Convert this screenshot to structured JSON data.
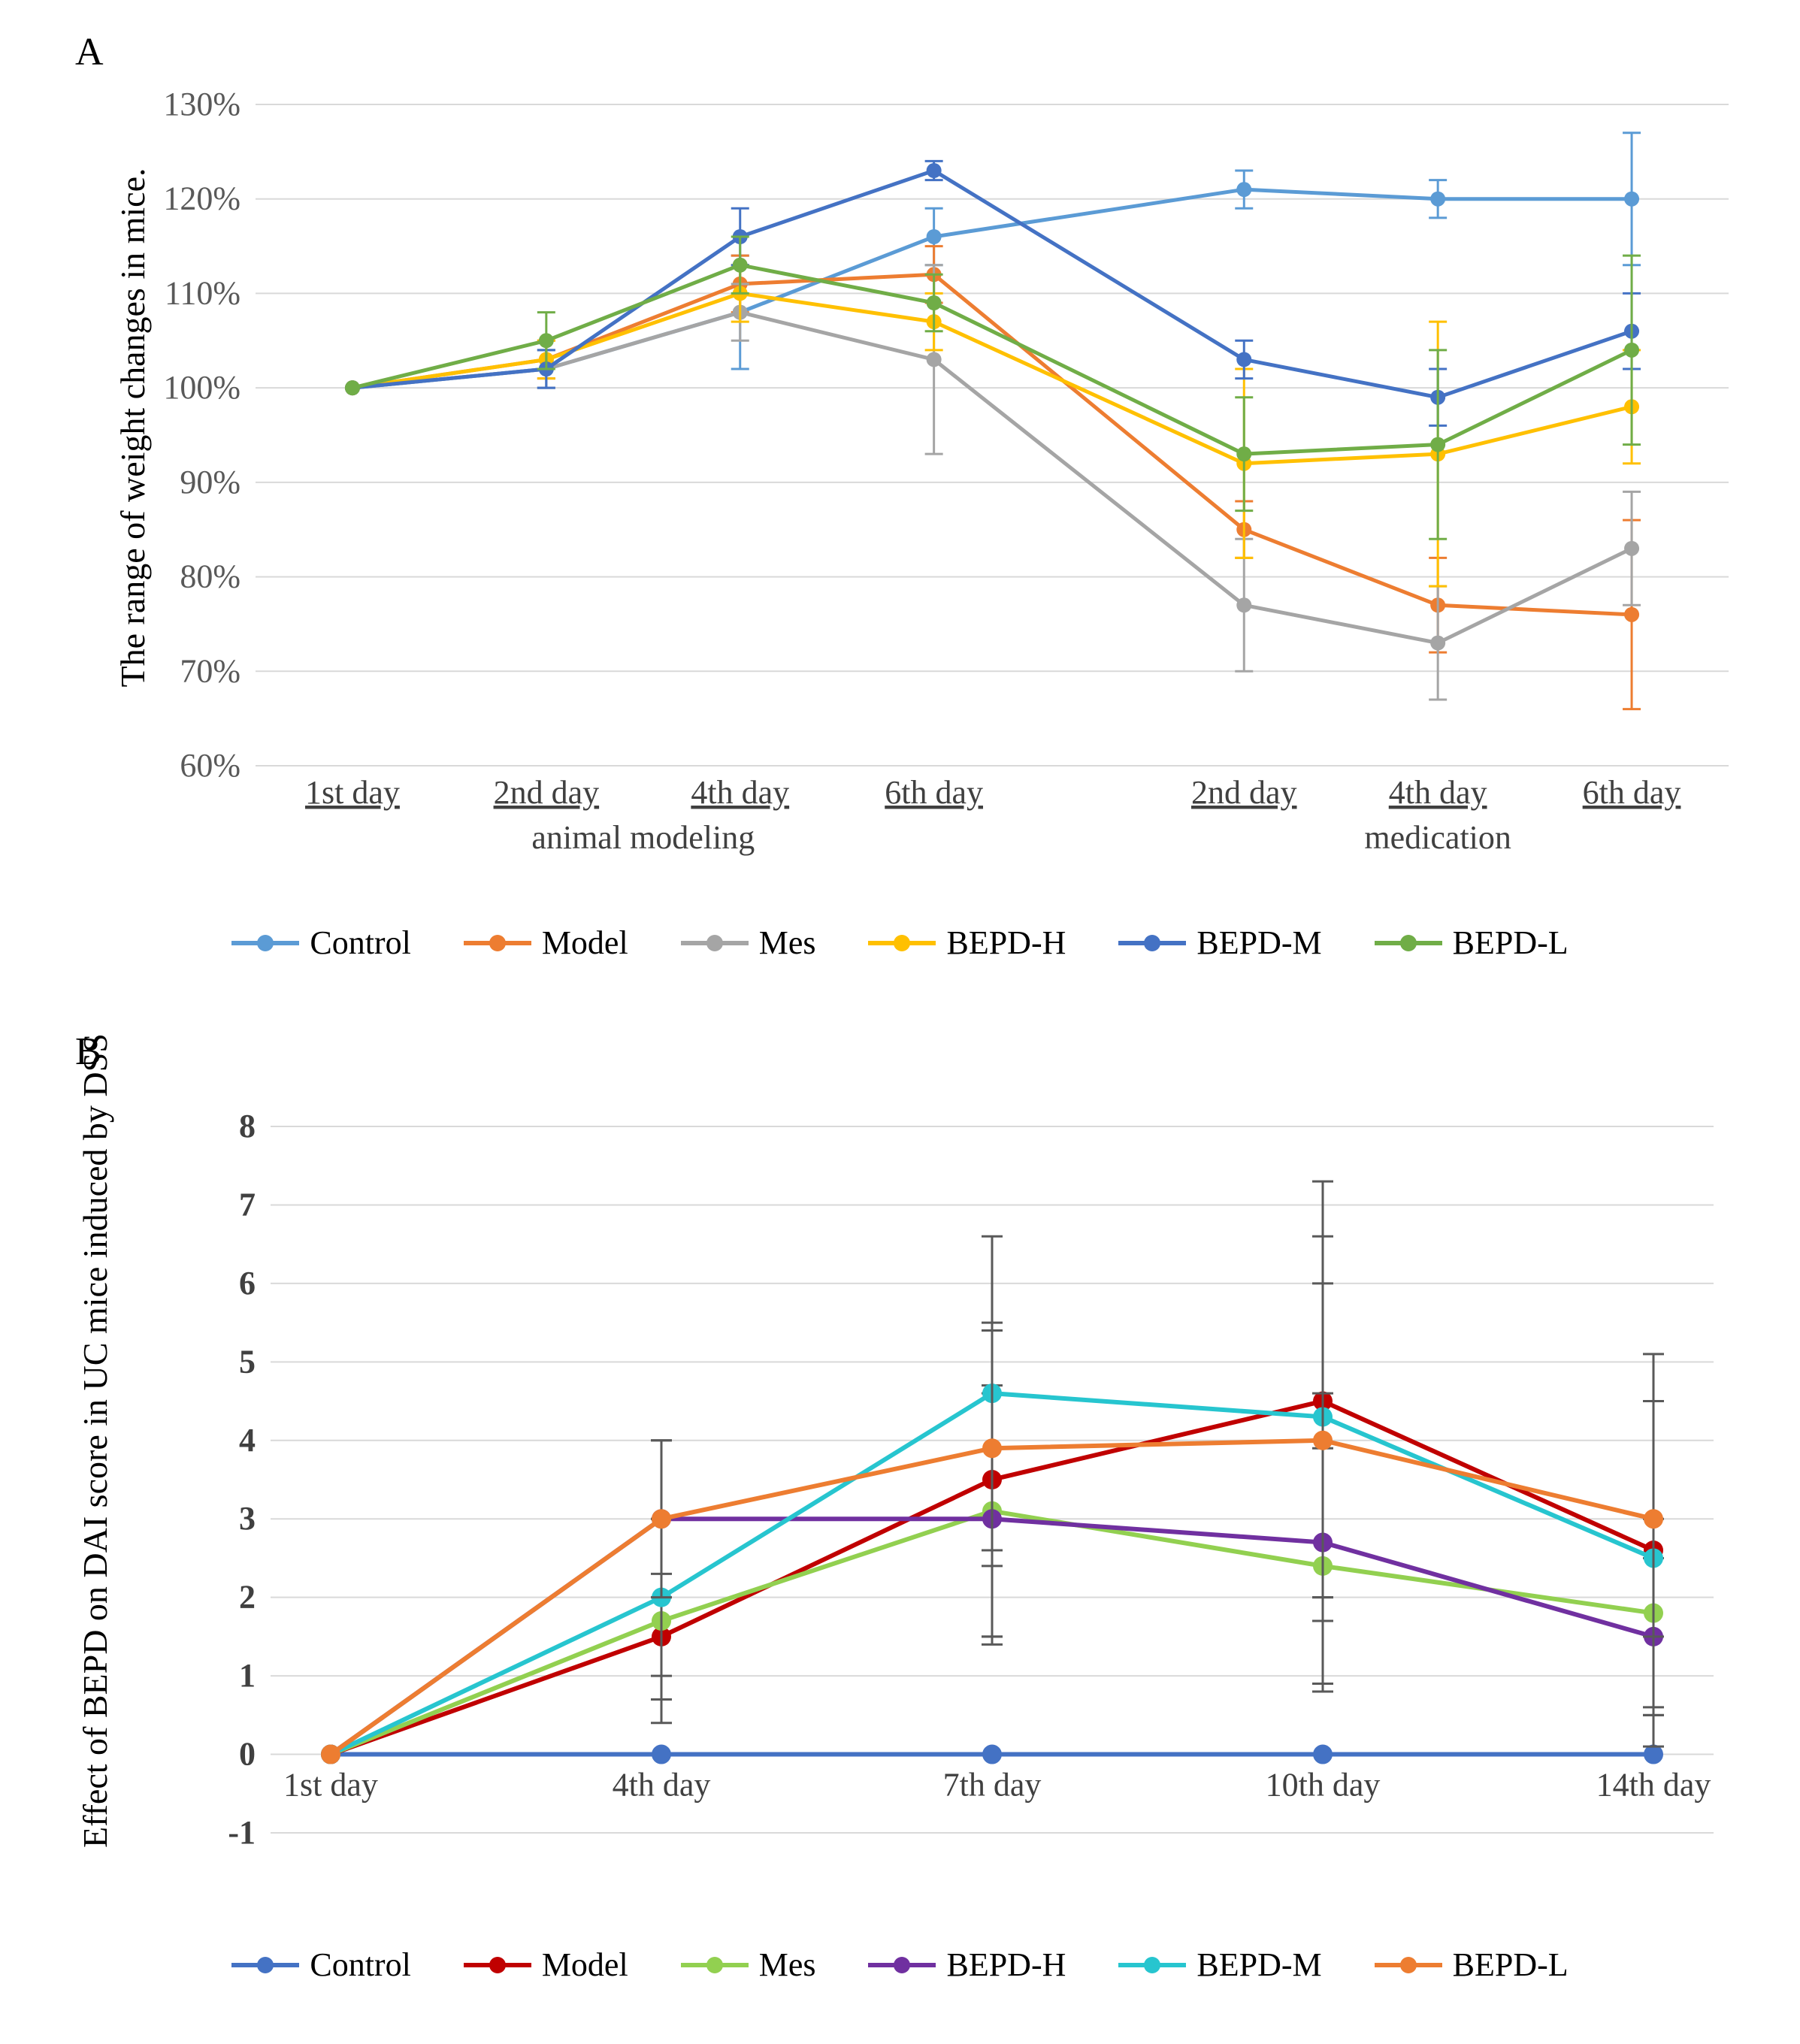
{
  "panelA": {
    "label": "A",
    "type": "line",
    "ylabel": "The range of weight changes in mice.",
    "yaxis": {
      "min": 0.6,
      "max": 1.3,
      "tick_step": 0.1,
      "tick_format": "percent",
      "label_fontsize": 44
    },
    "xaxis": {
      "categories": [
        "1st day",
        "2nd day",
        "4th day",
        "6th day",
        "2nd day",
        "4th day",
        "6th day"
      ],
      "phase_labels": [
        "animal modeling",
        "medication"
      ],
      "phase_ranges": [
        [
          0,
          3
        ],
        [
          4,
          6
        ]
      ],
      "gap_after_index": 3,
      "label_fontsize": 44
    },
    "grid_color": "#d9d9d9",
    "axis_color": "#808080",
    "background_color": "#ffffff",
    "line_width": 5,
    "marker_radius": 10,
    "series": [
      {
        "name": "Control",
        "color": "#5b9bd5",
        "y": [
          1.0,
          1.02,
          1.08,
          1.16,
          1.21,
          1.2,
          1.2
        ],
        "err": [
          0.0,
          0.02,
          0.06,
          0.03,
          0.02,
          0.02,
          0.07
        ]
      },
      {
        "name": "Model",
        "color": "#ed7d31",
        "y": [
          1.0,
          1.03,
          1.11,
          1.12,
          0.85,
          0.77,
          0.76
        ],
        "err": [
          0.0,
          0.02,
          0.03,
          0.03,
          0.03,
          0.05,
          0.1
        ]
      },
      {
        "name": "Mes",
        "color": "#a5a5a5",
        "y": [
          1.0,
          1.02,
          1.08,
          1.03,
          0.77,
          0.73,
          0.83
        ],
        "err": [
          0.0,
          0.02,
          0.03,
          0.1,
          0.07,
          0.06,
          0.06
        ]
      },
      {
        "name": "BEPD-H",
        "color": "#ffc000",
        "y": [
          1.0,
          1.03,
          1.1,
          1.07,
          0.92,
          0.93,
          0.98
        ],
        "err": [
          0.0,
          0.02,
          0.03,
          0.03,
          0.1,
          0.14,
          0.06
        ]
      },
      {
        "name": "BEPD-M",
        "color": "#4472c4",
        "y": [
          1.0,
          1.02,
          1.16,
          1.23,
          1.03,
          0.99,
          1.06
        ],
        "err": [
          0.0,
          0.02,
          0.03,
          0.01,
          0.02,
          0.03,
          0.04
        ]
      },
      {
        "name": "BEPD-L",
        "color": "#70ad47",
        "y": [
          1.0,
          1.05,
          1.13,
          1.09,
          0.93,
          0.94,
          1.04
        ],
        "err": [
          0.0,
          0.03,
          0.03,
          0.03,
          0.06,
          0.1,
          0.1
        ]
      }
    ]
  },
  "panelB": {
    "label": "B",
    "type": "line",
    "ylabel": "Effect of BEPD on DAI score in UC mice induced by DSS",
    "yaxis": {
      "min": -1,
      "max": 8,
      "tick_step": 1,
      "tick_format": "int",
      "label_fontsize": 44
    },
    "xaxis": {
      "categories": [
        "1st day",
        "4th day",
        "7th day",
        "10th day",
        "14th day"
      ],
      "label_fontsize": 44
    },
    "grid_color": "#d9d9d9",
    "axis_color": "#808080",
    "background_color": "#ffffff",
    "line_width": 6,
    "marker_radius": 13,
    "series": [
      {
        "name": "Control",
        "color": "#4472c4",
        "y": [
          0,
          0,
          0,
          0,
          0
        ],
        "err": [
          0,
          0,
          0,
          0,
          0
        ]
      },
      {
        "name": "Model",
        "color": "#c00000",
        "y": [
          0,
          1.5,
          3.5,
          4.5,
          2.6
        ],
        "err": [
          0,
          0.8,
          2.0,
          2.8,
          2.5
        ]
      },
      {
        "name": "Mes",
        "color": "#92d050",
        "y": [
          0,
          1.7,
          3.1,
          2.4,
          1.8
        ],
        "err": [
          0,
          1.3,
          1.6,
          1.5,
          1.2
        ]
      },
      {
        "name": "BEPD-H",
        "color": "#7030a0",
        "y": [
          0,
          3.0,
          3.0,
          2.7,
          1.5
        ],
        "err": [
          0,
          1.0,
          1.6,
          1.9,
          1.0
        ]
      },
      {
        "name": "BEPD-M",
        "color": "#27c5cf",
        "y": [
          0,
          2.0,
          4.6,
          4.3,
          2.5
        ],
        "err": [
          0,
          1.0,
          2.0,
          2.3,
          2.0
        ]
      },
      {
        "name": "BEPD-L",
        "color": "#ed7d31",
        "y": [
          0,
          3.0,
          3.9,
          4.0,
          3.0
        ],
        "err": [
          0,
          1.0,
          1.5,
          2.0,
          1.5
        ]
      }
    ]
  }
}
